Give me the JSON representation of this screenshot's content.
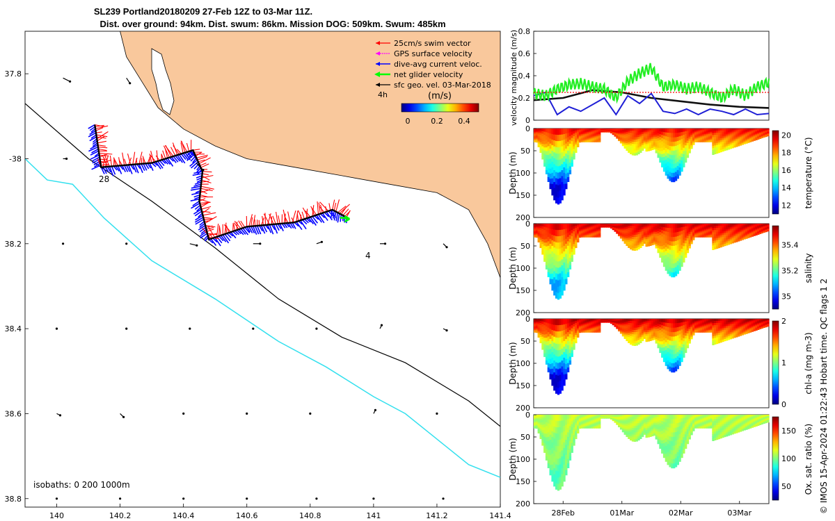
{
  "title": {
    "line1": "SL239 Portland20180209 27-Feb 12Z to 03-Mar 11Z.",
    "line2": "Dist. over ground: 94km. Dist. swum: 86km. Mission DOG: 509km. Swum: 485km"
  },
  "footer_note": "© IMOS 15-Apr-2024 01:22:43 Hobart time. QC flags 1  2",
  "colors": {
    "land": "#f9c89c",
    "swim": "#ff0000",
    "gps": "#ff00ff",
    "current": "#0000ff",
    "net": "#00ff00",
    "geo": "#000000",
    "isobath200": "#000000",
    "isobath1000": "#33e0ee",
    "velocity_mag_black": "#000000",
    "velocity_mag_blue": "#1f1fd6",
    "velocity_mag_green": "#22ee22",
    "velocity_mag_red": "#ff0000"
  },
  "chart_data": [
    {
      "type": "map",
      "name": "glider-track-map",
      "xlim": [
        139.9,
        141.4
      ],
      "ylim": [
        -38.82,
        -37.7
      ],
      "x_ticks": [
        140,
        140.2,
        140.4,
        140.6,
        140.8,
        141,
        141.2,
        141.4
      ],
      "x_tick_labels": [
        "140",
        "140.2",
        "140.4",
        "140.6",
        "140.8",
        "141",
        "141.2",
        "141.4"
      ],
      "y_ticks": [
        -37.8,
        -38,
        -38.2,
        -38.4,
        -38.6,
        -38.8
      ],
      "y_tick_labels": [
        "37.8",
        "-38",
        "38.2",
        "38.4",
        "38.6",
        "38.8"
      ],
      "legend": {
        "items": [
          "25cm/s swim vector",
          "GPS surface velocity",
          "dive-avg current veloc.",
          "net glider velocity",
          "sfc geo. vel. 03-Mar-2018"
        ],
        "time_tag": "4h",
        "units": "(m/s)",
        "colorbar_ticks": [
          "0",
          "0.2",
          "0.4"
        ],
        "colorbar_range": [
          0,
          0.5
        ]
      },
      "isobaths_label": "isobaths: 0   200  1000m",
      "track_annotations": [
        "28",
        "4"
      ],
      "track": [
        {
          "lon": 140.12,
          "lat": -37.92
        },
        {
          "lon": 140.14,
          "lat": -38.02
        },
        {
          "lon": 140.3,
          "lat": -38.01
        },
        {
          "lon": 140.43,
          "lat": -37.98
        },
        {
          "lon": 140.46,
          "lat": -38.03
        },
        {
          "lon": 140.45,
          "lat": -38.1
        },
        {
          "lon": 140.48,
          "lat": -38.19
        },
        {
          "lon": 140.6,
          "lat": -38.16
        },
        {
          "lon": 140.75,
          "lat": -38.15
        },
        {
          "lon": 140.87,
          "lat": -38.12
        },
        {
          "lon": 140.92,
          "lat": -38.14
        }
      ],
      "isobath_200": [
        {
          "lon": 139.9,
          "lat": -37.87
        },
        {
          "lon": 140.1,
          "lat": -38.0
        },
        {
          "lon": 140.3,
          "lat": -38.1
        },
        {
          "lon": 140.5,
          "lat": -38.21
        },
        {
          "lon": 140.7,
          "lat": -38.33
        },
        {
          "lon": 140.9,
          "lat": -38.42
        },
        {
          "lon": 141.1,
          "lat": -38.48
        },
        {
          "lon": 141.3,
          "lat": -38.57
        },
        {
          "lon": 141.4,
          "lat": -38.63
        }
      ],
      "isobath_1000": [
        {
          "lon": 139.9,
          "lat": -38.0
        },
        {
          "lon": 139.97,
          "lat": -38.05
        },
        {
          "lon": 140.05,
          "lat": -38.06
        },
        {
          "lon": 140.15,
          "lat": -38.14
        },
        {
          "lon": 140.3,
          "lat": -38.24
        },
        {
          "lon": 140.5,
          "lat": -38.33
        },
        {
          "lon": 140.7,
          "lat": -38.43
        },
        {
          "lon": 140.85,
          "lat": -38.49
        },
        {
          "lon": 141.0,
          "lat": -38.56
        },
        {
          "lon": 141.1,
          "lat": -38.6
        },
        {
          "lon": 141.2,
          "lat": -38.66
        },
        {
          "lon": 141.3,
          "lat": -38.72
        },
        {
          "lon": 141.4,
          "lat": -38.75
        }
      ],
      "coast": [
        {
          "lon": 140.2,
          "lat": -37.7
        },
        {
          "lon": 140.22,
          "lat": -37.76
        },
        {
          "lon": 140.27,
          "lat": -37.82
        },
        {
          "lon": 140.32,
          "lat": -37.88
        },
        {
          "lon": 140.4,
          "lat": -37.93
        },
        {
          "lon": 140.5,
          "lat": -37.97
        },
        {
          "lon": 140.6,
          "lat": -38.0
        },
        {
          "lon": 140.75,
          "lat": -38.02
        },
        {
          "lon": 140.9,
          "lat": -38.04
        },
        {
          "lon": 141.05,
          "lat": -38.06
        },
        {
          "lon": 141.2,
          "lat": -38.08
        },
        {
          "lon": 141.3,
          "lat": -38.12
        },
        {
          "lon": 141.36,
          "lat": -38.2
        },
        {
          "lon": 141.4,
          "lat": -38.28
        }
      ],
      "geo_vectors": [
        {
          "lon": 140.02,
          "lat": -37.81,
          "u": 0.04,
          "v": -0.02
        },
        {
          "lon": 140.22,
          "lat": -37.81,
          "u": 0.02,
          "v": -0.03
        },
        {
          "lon": 140.02,
          "lat": -38.0,
          "u": 0.02,
          "v": 0.0
        },
        {
          "lon": 140.44,
          "lat": -38.01,
          "u": 0.04,
          "v": -0.04
        },
        {
          "lon": 140.02,
          "lat": -38.2,
          "u": 0.0,
          "v": 0.0
        },
        {
          "lon": 140.22,
          "lat": -38.2,
          "u": 0.0,
          "v": 0.0
        },
        {
          "lon": 140.42,
          "lat": -38.2,
          "u": 0.04,
          "v": -0.01
        },
        {
          "lon": 140.62,
          "lat": -38.2,
          "u": 0.04,
          "v": 0.0
        },
        {
          "lon": 140.82,
          "lat": -38.2,
          "u": 0.03,
          "v": 0.01
        },
        {
          "lon": 141.02,
          "lat": -38.2,
          "u": 0.03,
          "v": 0.0
        },
        {
          "lon": 141.22,
          "lat": -38.2,
          "u": 0.02,
          "v": -0.02
        },
        {
          "lon": 140.0,
          "lat": -38.4,
          "u": 0.0,
          "v": 0.0
        },
        {
          "lon": 140.22,
          "lat": -38.4,
          "u": 0.0,
          "v": 0.0
        },
        {
          "lon": 140.42,
          "lat": -38.4,
          "u": 0.0,
          "v": 0.0
        },
        {
          "lon": 140.62,
          "lat": -38.4,
          "u": 0.0,
          "v": 0.0
        },
        {
          "lon": 140.82,
          "lat": -38.4,
          "u": 0.0,
          "v": 0.0
        },
        {
          "lon": 141.02,
          "lat": -38.4,
          "u": 0.01,
          "v": 0.02
        },
        {
          "lon": 141.22,
          "lat": -38.4,
          "u": 0.02,
          "v": -0.01
        },
        {
          "lon": 140.0,
          "lat": -38.6,
          "u": 0.02,
          "v": -0.01
        },
        {
          "lon": 140.2,
          "lat": -38.6,
          "u": 0.02,
          "v": -0.02
        },
        {
          "lon": 140.4,
          "lat": -38.6,
          "u": 0.0,
          "v": 0.0
        },
        {
          "lon": 140.6,
          "lat": -38.6,
          "u": 0.0,
          "v": 0.0
        },
        {
          "lon": 140.8,
          "lat": -38.6,
          "u": 0.0,
          "v": 0.0
        },
        {
          "lon": 141.0,
          "lat": -38.6,
          "u": 0.01,
          "v": 0.02
        },
        {
          "lon": 141.2,
          "lat": -38.6,
          "u": 0.0,
          "v": 0.0
        },
        {
          "lon": 140.0,
          "lat": -38.8,
          "u": 0.0,
          "v": 0.0
        },
        {
          "lon": 140.2,
          "lat": -38.8,
          "u": 0.0,
          "v": 0.0
        },
        {
          "lon": 140.4,
          "lat": -38.8,
          "u": 0.0,
          "v": 0.0
        },
        {
          "lon": 140.6,
          "lat": -38.8,
          "u": 0.0,
          "v": 0.0
        },
        {
          "lon": 140.82,
          "lat": -38.8,
          "u": 0.0,
          "v": 0.0
        },
        {
          "lon": 141.0,
          "lat": -38.8,
          "u": 0.0,
          "v": 0.0
        },
        {
          "lon": 141.22,
          "lat": -38.8,
          "u": 0.0,
          "v": 0.0
        }
      ]
    },
    {
      "type": "line",
      "name": "velocity-magnitude",
      "ylabel": "velocity magnitude (m/s)",
      "ylim": [
        0,
        0.8
      ],
      "y_ticks": [
        "0",
        "0.2",
        "0.4",
        "0.6",
        "0.8"
      ],
      "x_days": [
        0,
        4
      ],
      "series": [
        {
          "color": "black",
          "x": [
            0,
            0.5,
            1.0,
            1.5,
            2.0,
            2.5,
            3.0,
            3.5,
            4.0
          ],
          "values": [
            0.18,
            0.2,
            0.27,
            0.25,
            0.2,
            0.17,
            0.14,
            0.12,
            0.11
          ]
        },
        {
          "color": "blue",
          "x": [
            0,
            0.2,
            0.4,
            0.6,
            0.8,
            1.0,
            1.2,
            1.4,
            1.6,
            1.8,
            2.0,
            2.2,
            2.4,
            2.6,
            2.8,
            3.0,
            3.2,
            3.4,
            3.6,
            3.8,
            4.0
          ],
          "values": [
            0.22,
            0.25,
            0.05,
            0.12,
            0.08,
            0.14,
            0.2,
            0.05,
            0.22,
            0.15,
            0.24,
            0.08,
            0.06,
            0.1,
            0.05,
            0.1,
            0.08,
            0.05,
            0.1,
            0.05,
            0.06
          ]
        },
        {
          "color": "green",
          "x": [
            0,
            0.2,
            0.4,
            0.6,
            0.8,
            1.0,
            1.2,
            1.4,
            1.6,
            1.8,
            2.0,
            2.2,
            2.4,
            2.6,
            2.8,
            3.0,
            3.2,
            3.4,
            3.6,
            3.8,
            4.0
          ],
          "values": [
            0.24,
            0.22,
            0.28,
            0.32,
            0.33,
            0.3,
            0.28,
            0.2,
            0.35,
            0.42,
            0.47,
            0.3,
            0.32,
            0.28,
            0.3,
            0.25,
            0.2,
            0.28,
            0.22,
            0.3,
            0.34
          ]
        },
        {
          "color": "red",
          "x": [
            0,
            4.0
          ],
          "values": [
            0.25,
            0.25
          ]
        }
      ]
    },
    {
      "type": "heatmap",
      "name": "temperature-section",
      "ylabel": "Depth (m)",
      "clabel": "temperature (°C)",
      "cticks": [
        "12",
        "14",
        "16",
        "18",
        "20"
      ],
      "crange": [
        11,
        20.5
      ],
      "ylim": [
        0,
        200
      ],
      "y_ticks": [
        "0",
        "50",
        "100",
        "150",
        "200"
      ],
      "surface_value": 19.5,
      "deep_value": 12
    },
    {
      "type": "heatmap",
      "name": "salinity-section",
      "ylabel": "Depth (m)",
      "clabel": "salinity",
      "cticks": [
        "35",
        "35.2",
        "35.4"
      ],
      "crange": [
        34.9,
        35.55
      ],
      "ylim": [
        0,
        200
      ],
      "y_ticks": [
        "0",
        "50",
        "100",
        "150",
        "200"
      ],
      "surface_value": 35.5,
      "deep_value": 35.1
    },
    {
      "type": "heatmap",
      "name": "chl-a-section",
      "ylabel": "Depth (m)",
      "clabel": "chl-a (mg m-3)",
      "cticks": [
        "0",
        "1",
        "2"
      ],
      "crange": [
        0,
        2
      ],
      "ylim": [
        0,
        200
      ],
      "y_ticks": [
        "0",
        "50",
        "100",
        "150",
        "200"
      ],
      "surface_value": 1.9,
      "deep_value": 0.2
    },
    {
      "type": "heatmap",
      "name": "oxygen-section",
      "ylabel": "Depth (m)",
      "clabel": "Ox. sat. ratio (%)",
      "cticks": [
        "50",
        "100",
        "150"
      ],
      "crange": [
        25,
        175
      ],
      "ylim": [
        0,
        200
      ],
      "y_ticks": [
        "0",
        "50",
        "100",
        "150",
        "200"
      ],
      "surface_value": 110,
      "deep_value": 95
    }
  ],
  "time_axis": {
    "tick_labels": [
      "28Feb",
      "01Mar",
      "02Mar",
      "03Mar"
    ],
    "tick_days": [
      0.5,
      1.5,
      2.5,
      3.5
    ],
    "range_days": [
      0,
      4
    ]
  }
}
